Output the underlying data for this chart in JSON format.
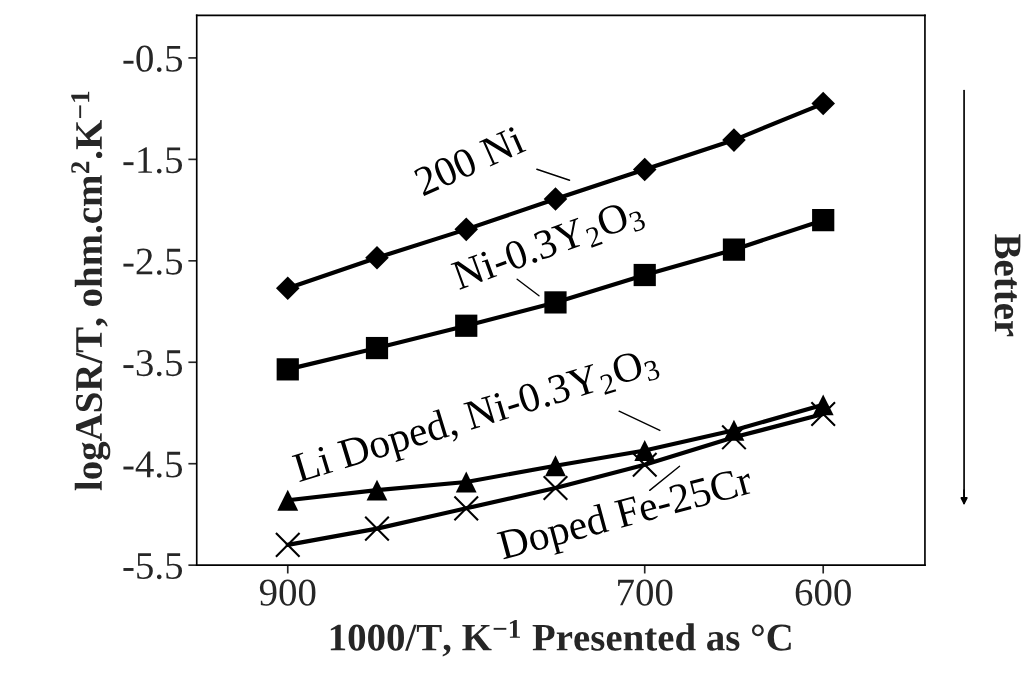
{
  "chart_data": {
    "type": "line",
    "xlabel": "1000/T, K$^{−1}$ Presented as °C",
    "ylabel": "logASR/T, ohm.cm$^{2}$.K$^{−1}$",
    "x": [
      900,
      850,
      800,
      750,
      700,
      650,
      600
    ],
    "xlim": [
      951,
      543
    ],
    "xticks": [
      900,
      700,
      600
    ],
    "ylim": [
      -5.5,
      -0.08
    ],
    "yticks": [
      -0.5,
      -1.5,
      -2.5,
      -3.5,
      -4.5,
      -5.5
    ],
    "grid": false,
    "legend": "center",
    "series": [
      {
        "name": "200 Ni",
        "color": "#000000",
        "marker": "diamond",
        "values": [
          -2.77,
          -2.47,
          -2.19,
          -1.89,
          -1.6,
          -1.31,
          -0.95
        ]
      },
      {
        "name": "Ni-0.3Y$_{2}$O$_{3}$",
        "color": "#000000",
        "marker": "square",
        "values": [
          -3.57,
          -3.36,
          -3.14,
          -2.91,
          -2.64,
          -2.39,
          -2.1
        ]
      },
      {
        "name": "Li Doped, Ni-0.3Y$_{2}$O$_{3}$",
        "color": "#000000",
        "marker": "triangle",
        "values": [
          -4.86,
          -4.76,
          -4.68,
          -4.52,
          -4.37,
          -4.17,
          -3.92
        ]
      },
      {
        "name": "Doped Fe-25Cr",
        "color": "#000000",
        "marker": "cross",
        "values": [
          -5.3,
          -5.14,
          -4.94,
          -4.74,
          -4.51,
          -4.24,
          -4.01
        ]
      }
    ],
    "annotations": [
      "Better"
    ]
  }
}
